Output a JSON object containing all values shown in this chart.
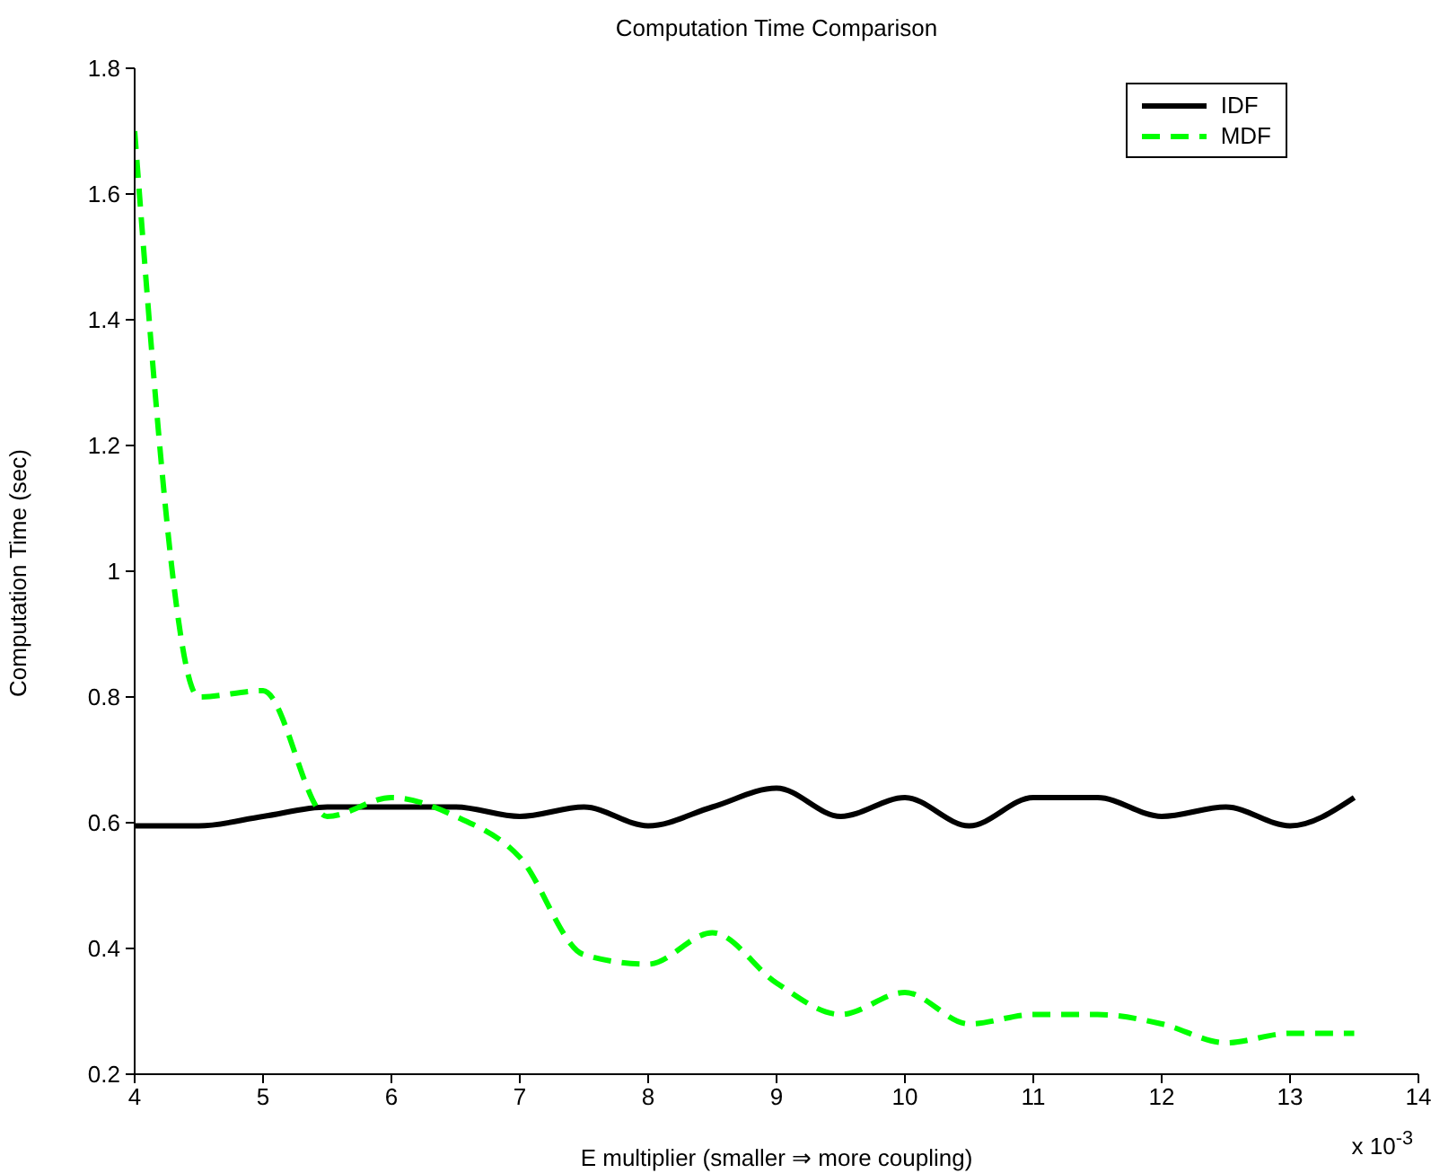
{
  "chart_data": {
    "type": "line",
    "title": "Computation Time Comparison",
    "xlabel": "E multiplier (smaller ⇒ more coupling)",
    "ylabel": "Computation Time (sec)",
    "annotations": [
      "x 10$^{-3}$"
    ],
    "x": [
      4,
      4.5,
      5,
      5.5,
      6,
      6.5,
      7,
      7.5,
      8,
      8.5,
      9,
      9.5,
      10,
      10.5,
      11,
      11.5,
      12,
      12.5,
      13,
      13.5
    ],
    "series": [
      {
        "name": "IDF",
        "color": "#000000",
        "line_style": "solid",
        "values": [
          0.595,
          0.595,
          0.61,
          0.625,
          0.625,
          0.625,
          0.61,
          0.625,
          0.595,
          0.625,
          0.655,
          0.61,
          0.64,
          0.595,
          0.64,
          0.64,
          0.61,
          0.625,
          0.595,
          0.64
        ]
      },
      {
        "name": "MDF",
        "color": "#00ff00",
        "line_style": "dashed",
        "values": [
          1.7,
          0.8,
          0.81,
          0.61,
          0.64,
          0.61,
          0.545,
          0.39,
          0.375,
          0.425,
          0.345,
          0.295,
          0.33,
          0.28,
          0.295,
          0.295,
          0.28,
          0.25,
          0.265,
          0.265
        ]
      }
    ],
    "xlim": [
      4,
      14
    ],
    "xticks": [
      4,
      5,
      6,
      7,
      8,
      9,
      10,
      11,
      12,
      13,
      14
    ],
    "ylim": [
      0.2,
      1.8
    ],
    "yticks": [
      0.2,
      0.4,
      0.6,
      0.8,
      1,
      1.2,
      1.4,
      1.6,
      1.8
    ],
    "grid": false,
    "legend": "top right",
    "marker": "none"
  }
}
